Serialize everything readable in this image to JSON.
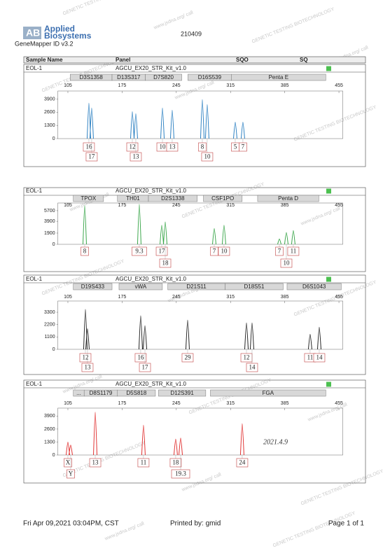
{
  "header": {
    "logo_line1": "Applied",
    "logo_line2": "Biosystems",
    "software": "GeneMapper ID v3.2",
    "run": "210409"
  },
  "table_header": {
    "sample_name": "Sample Name",
    "panel": "Panel",
    "sqo": "SQO",
    "sq": "SQ"
  },
  "panels": [
    {
      "sample": "EOL-1",
      "panel": "AGCU_EX20_STR_Kit_v1.0",
      "color": "#2a7fc1",
      "xlim": [
        92,
        460
      ],
      "xticks": [
        105,
        175,
        245,
        315,
        385,
        455
      ],
      "ylim": [
        0,
        4700
      ],
      "yticks": [
        0,
        1300,
        2600,
        3900
      ],
      "loci": [
        {
          "name": "D3S1358",
          "start": 108,
          "end": 162
        },
        {
          "name": "D13S317",
          "start": 162,
          "end": 205
        },
        {
          "name": "D7S820",
          "start": 205,
          "end": 252
        },
        {
          "name": "D16S539",
          "start": 260,
          "end": 316
        },
        {
          "name": "Penta E",
          "start": 316,
          "end": 438
        }
      ],
      "peaks": [
        {
          "allele": "16",
          "size": 132.1,
          "height": 3510
        },
        {
          "allele": "17",
          "size": 135.7,
          "height": 3020
        },
        {
          "allele": "12",
          "size": 188.2,
          "height": 2670
        },
        {
          "allele": "13",
          "size": 192.7,
          "height": 2460
        },
        {
          "allele": "10",
          "size": 227.1,
          "height": 3020
        },
        {
          "allele": "13",
          "size": 239.7,
          "height": 2810
        },
        {
          "allele": "8",
          "size": 278.6,
          "height": 3860
        },
        {
          "allele": "10",
          "size": 284.9,
          "height": 3370
        },
        {
          "allele": "5",
          "size": 321.1,
          "height": 1620
        },
        {
          "allele": "7",
          "size": 331.0,
          "height": 1620
        }
      ]
    },
    {
      "sample": "EOL-1",
      "panel": "AGCU_EX20_STR_Kit_v1.0",
      "color": "#3aa64a",
      "xlim": [
        92,
        460
      ],
      "xticks": [
        105,
        175,
        245,
        315,
        385,
        455
      ],
      "ylim": [
        0,
        7000
      ],
      "yticks": [
        0,
        1900,
        3900,
        5700
      ],
      "loci": [
        {
          "name": "TPOX",
          "start": 112,
          "end": 151
        },
        {
          "name": "TH01",
          "start": 169,
          "end": 209
        },
        {
          "name": "D2S1338",
          "start": 209,
          "end": 272
        },
        {
          "name": "CSF1PO",
          "start": 280,
          "end": 330
        },
        {
          "name": "Penta D",
          "start": 350,
          "end": 429
        }
      ],
      "peaks": [
        {
          "allele": "8",
          "size": 126.7,
          "height": 6590
        },
        {
          "allele": "9.3",
          "size": 197.2,
          "height": 6800
        },
        {
          "allele": "17",
          "size": 226.2,
          "height": 3240
        },
        {
          "allele": "18",
          "size": 230.7,
          "height": 3800
        },
        {
          "allele": "7",
          "size": 294.0,
          "height": 2680
        },
        {
          "allele": "10",
          "size": 306.6,
          "height": 3240
        },
        {
          "allele": "7",
          "size": 378.1,
          "height": 900
        },
        {
          "allele": "10",
          "size": 387.1,
          "height": 2000
        },
        {
          "allele": "11",
          "size": 396.1,
          "height": 2350
        }
      ]
    },
    {
      "sample": "EOL-1",
      "panel": "AGCU_EX20_STR_Kit_v1.0",
      "color": "#222222",
      "xlim": [
        92,
        460
      ],
      "xticks": [
        105,
        175,
        245,
        315,
        385,
        455
      ],
      "ylim": [
        0,
        4300
      ],
      "yticks": [
        0,
        1100,
        2200,
        3300
      ],
      "loci": [
        {
          "name": "D19S433",
          "start": 112,
          "end": 162
        },
        {
          "name": "vWA",
          "start": 171,
          "end": 227
        },
        {
          "name": "D21S11",
          "start": 234,
          "end": 308
        },
        {
          "name": "D18S51",
          "start": 308,
          "end": 383
        },
        {
          "name": "D6S1043",
          "start": 388,
          "end": 458
        }
      ],
      "peaks": [
        {
          "allele": "12",
          "size": 127.6,
          "height": 3560
        },
        {
          "allele": "13",
          "size": 130.3,
          "height": 1840
        },
        {
          "allele": "16",
          "size": 199.0,
          "height": 2990
        },
        {
          "allele": "17",
          "size": 204.5,
          "height": 2100
        },
        {
          "allele": "29",
          "size": 259.6,
          "height": 2600
        },
        {
          "allele": "12",
          "size": 335.6,
          "height": 2350
        },
        {
          "allele": "14",
          "size": 342.8,
          "height": 2350
        },
        {
          "allele": "11",
          "size": 417.8,
          "height": 1340
        },
        {
          "allele": "14",
          "size": 429.6,
          "height": 1970
        }
      ]
    },
    {
      "sample": "EOL-1",
      "panel": "AGCU_EX20_STR_Kit_v1.0",
      "color": "#e03030",
      "xlim": [
        92,
        460
      ],
      "xticks": [
        105,
        175,
        245,
        315,
        385,
        455
      ],
      "ylim": [
        0,
        4700
      ],
      "yticks": [
        0,
        1300,
        2600,
        3900
      ],
      "loci": [
        {
          "name": "...",
          "start": 112,
          "end": 126
        },
        {
          "name": "D8S1179",
          "start": 126,
          "end": 169
        },
        {
          "name": "D5S818",
          "start": 169,
          "end": 218
        },
        {
          "name": "D12S391",
          "start": 222,
          "end": 283
        },
        {
          "name": "FGA",
          "start": 289,
          "end": 438
        }
      ],
      "peaks": [
        {
          "allele": "X",
          "size": 105.0,
          "height": 1300
        },
        {
          "allele": "Y",
          "size": 108.6,
          "height": 1000
        },
        {
          "allele": "13",
          "size": 140.3,
          "height": 4300
        },
        {
          "allele": "11",
          "size": 202.6,
          "height": 3000
        },
        {
          "allele": "18",
          "size": 244.2,
          "height": 1600
        },
        {
          "allele": "19.3",
          "size": 250.6,
          "height": 1700
        },
        {
          "allele": "24",
          "size": 330.1,
          "height": 3150
        }
      ]
    }
  ],
  "handwriting": {
    "date": "2021.4.9"
  },
  "watermarks": [
    "GENETIC TESTING BIOTECHNOLOGY",
    "www.jsdna.org/ call"
  ],
  "footer": {
    "printed_at": "Fri Apr 09,2021 03:04PM, CST",
    "printed_by": "Printed by: gmid",
    "page": "Page 1 of 1"
  }
}
